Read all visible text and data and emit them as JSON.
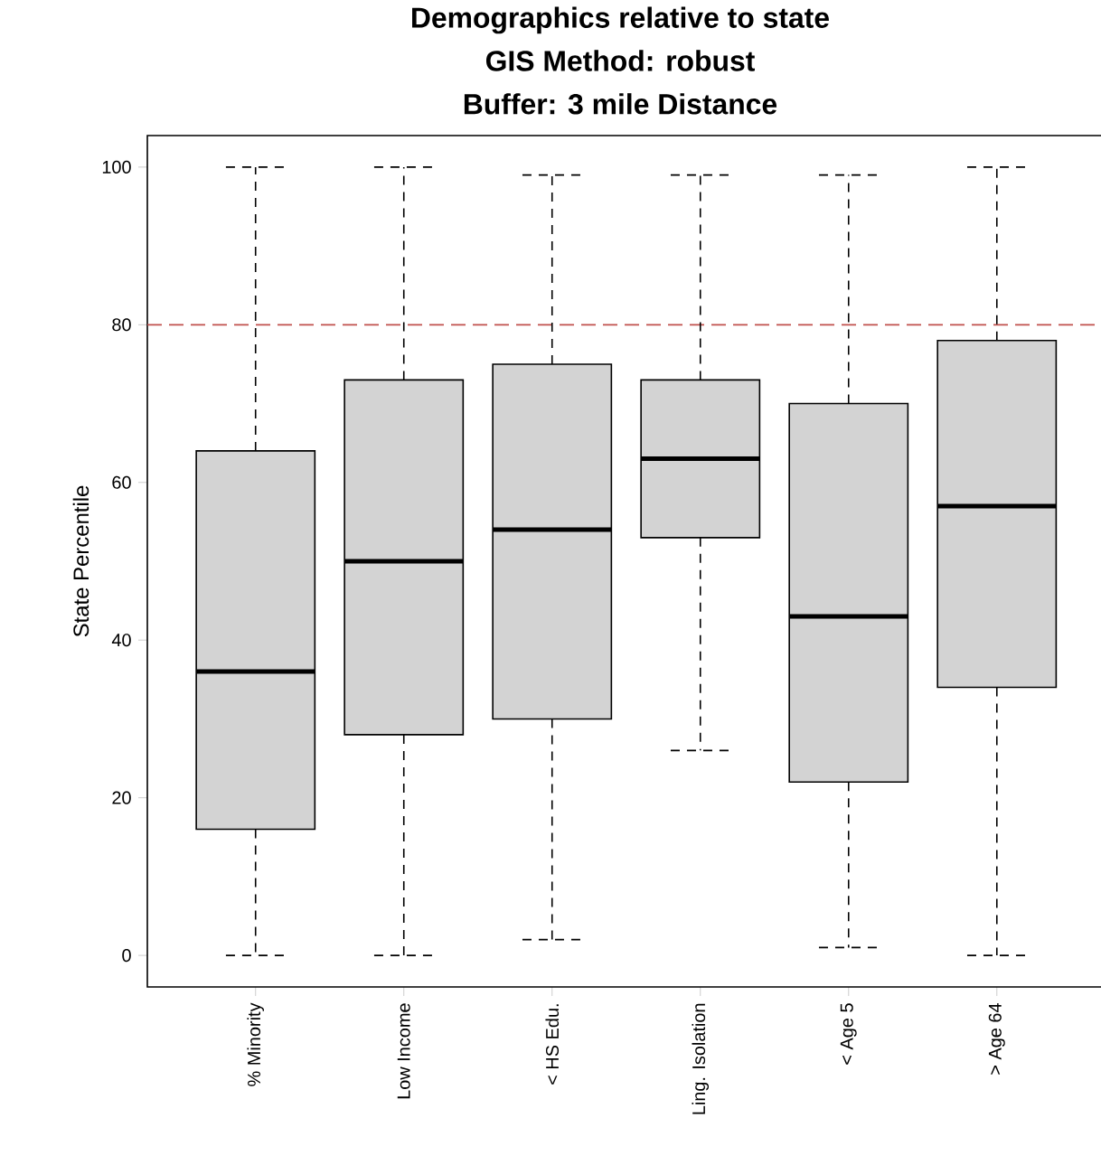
{
  "chart_data": {
    "type": "box",
    "title": "Demographics relative to state",
    "subtitle": "GIS Method: robust",
    "annotations": [
      "Buffer: 3 mile Distance"
    ],
    "ylabel": "State Percentile",
    "categories": [
      "% Minority",
      "Low Income",
      "< HS Edu.",
      "Ling. Isolation",
      "< Age 5",
      "> Age 64"
    ],
    "series": [
      {
        "color": "#d3d3d3",
        "boxes": [
          {
            "low": 0,
            "q1": 16,
            "median": 36,
            "q3": 64,
            "high": 100
          },
          {
            "low": 0,
            "q1": 28,
            "median": 50,
            "q3": 73,
            "high": 100
          },
          {
            "low": 2,
            "q1": 30,
            "median": 54,
            "q3": 75,
            "high": 99
          },
          {
            "low": 26,
            "q1": 53,
            "median": 63,
            "q3": 73,
            "high": 99
          },
          {
            "low": 1,
            "q1": 22,
            "median": 43,
            "q3": 70,
            "high": 99
          },
          {
            "low": 0,
            "q1": 34,
            "median": 57,
            "q3": 78,
            "high": 100
          }
        ]
      }
    ],
    "ylim": [
      -4,
      104
    ],
    "yticks": [
      0,
      20,
      40,
      60,
      80,
      100
    ],
    "ref_lines": [
      {
        "axis": "y",
        "value": 80,
        "color": "#c0504d",
        "line_style": "dashed"
      }
    ]
  }
}
